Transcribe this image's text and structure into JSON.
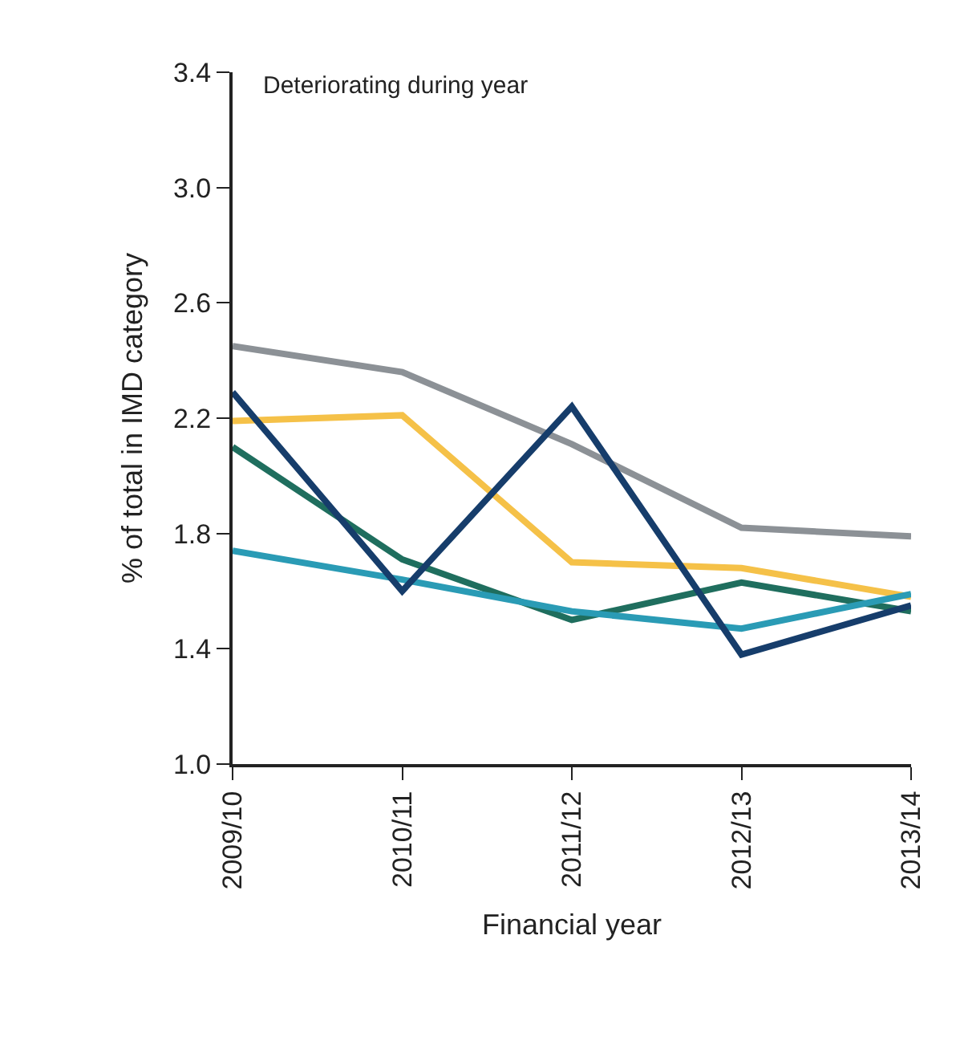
{
  "chart_data": {
    "type": "line",
    "xlabel": "Financial year",
    "ylabel": "% of total in IMD category",
    "annotations": [
      "Deteriorating during year"
    ],
    "categories": [
      "2009/10",
      "2010/11",
      "2011/12",
      "2012/13",
      "2013/14"
    ],
    "series": [
      {
        "color": "#8c9196",
        "values": [
          2.45,
          2.36,
          2.11,
          1.82,
          1.79
        ]
      },
      {
        "color": "#f5c148",
        "values": [
          2.19,
          2.21,
          1.7,
          1.68,
          1.58
        ]
      },
      {
        "color": "#1f6e5e",
        "values": [
          2.1,
          1.71,
          1.5,
          1.63,
          1.53
        ]
      },
      {
        "color": "#2a9bb5",
        "values": [
          1.74,
          1.64,
          1.53,
          1.47,
          1.59
        ]
      },
      {
        "color": "#163d6b",
        "values": [
          2.29,
          1.6,
          2.24,
          1.38,
          1.55
        ]
      }
    ],
    "ylim": [
      1.0,
      3.4
    ],
    "yticks": [
      {
        "value": 1.0,
        "label": "1.0"
      },
      {
        "value": 1.4,
        "label": "1.4"
      },
      {
        "value": 1.8,
        "label": "1.8"
      },
      {
        "value": 2.2,
        "label": "2.2"
      },
      {
        "value": 2.6,
        "label": "2.6"
      },
      {
        "value": 3.0,
        "label": "3.0"
      },
      {
        "value": 3.4,
        "label": "3.4"
      }
    ],
    "grid": false,
    "marker": "none",
    "line_style": "solid"
  }
}
